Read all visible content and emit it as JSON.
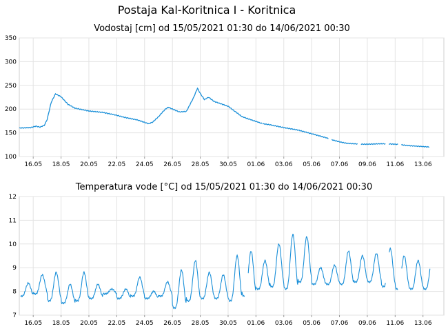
{
  "page_title": "Postaja Kal-Koritnica I - Koritnica",
  "colors": {
    "series": "#1a8fd8",
    "grid": "#e3e3e3",
    "axis": "#cfcfcf",
    "plot_bg": "#ffffff",
    "page_bg": "#f2f2f2"
  },
  "chart_data": [
    {
      "type": "line",
      "title": "Vodostaj [cm] od 15/05/2021 01:30 do 14/06/2021 00:30",
      "xlabel": "",
      "ylabel": "",
      "ylim": [
        100,
        350
      ],
      "yticks": [
        "100",
        "150",
        "200",
        "250",
        "300",
        "350"
      ],
      "xticks": [
        "16.05",
        "18.05",
        "20.05",
        "22.05",
        "24.05",
        "26.05",
        "28.05",
        "30.05",
        "01.06",
        "03.06",
        "05.06",
        "07.06",
        "09.06",
        "11.06",
        "13.06"
      ],
      "grid": true,
      "x_unit": "days since 15.05 00:00",
      "series": [
        {
          "x": [
            0.0,
            0.8,
            1.2,
            1.5,
            1.8,
            2.0,
            2.3,
            2.6,
            3.0,
            3.5,
            4.0,
            5.0,
            6.0,
            7.0,
            7.5,
            8.0,
            8.5,
            9.0,
            9.3,
            9.6,
            10.0,
            10.3,
            10.5,
            10.7,
            11.0,
            11.5,
            12.0,
            12.5,
            12.8,
            13.0,
            13.3,
            13.6,
            14.0,
            15.0,
            16.0,
            17.0,
            17.5
          ],
          "y": [
            160,
            161,
            164,
            162,
            166,
            178,
            215,
            232,
            226,
            210,
            202,
            196,
            193,
            187,
            183,
            180,
            177,
            172,
            169,
            173,
            184,
            194,
            200,
            204,
            200,
            194,
            195,
            223,
            244,
            233,
            220,
            225,
            216,
            206,
            184,
            174,
            169
          ]
        },
        {
          "x": [
            17.5,
            18.0,
            19.0,
            20.0,
            21.0,
            22.0,
            22.5,
            23.0,
            23.5,
            24.0,
            24.5,
            25.0,
            26.0,
            27.0,
            28.0,
            29.0,
            29.5
          ],
          "y": [
            169,
            167,
            161,
            156,
            148,
            140,
            135,
            131,
            128,
            127,
            126,
            126,
            127,
            126,
            123,
            121,
            120
          ],
          "gaps_at": [
            16.2,
            22.2,
            24.3,
            26.3,
            27.2
          ]
        }
      ]
    },
    {
      "type": "line",
      "title": "Temperatura vode [°C] od 15/05/2021 01:30 do 14/06/2021 00:30",
      "xlabel": "",
      "ylabel": "",
      "ylim": [
        7,
        12
      ],
      "yticks": [
        "7",
        "8",
        "9",
        "10",
        "11",
        "12"
      ],
      "xticks": [
        "16.05",
        "18.05",
        "20.05",
        "22.05",
        "24.05",
        "26.05",
        "28.05",
        "30.05",
        "01.06",
        "03.06",
        "05.06",
        "07.06",
        "09.06",
        "11.06",
        "13.06"
      ],
      "grid": true,
      "x_unit": "days since 15.05 00:00",
      "daily_pattern": {
        "day_index": [
          0,
          1,
          2,
          3,
          4,
          5,
          6,
          7,
          8,
          9,
          10,
          11,
          12,
          13,
          14,
          15,
          16,
          17,
          18,
          19,
          20,
          21,
          22,
          23,
          24,
          25,
          26,
          27,
          28,
          29
        ],
        "daily_max": [
          8.35,
          8.7,
          8.8,
          8.3,
          8.8,
          8.3,
          8.1,
          8.1,
          8.6,
          8.0,
          8.4,
          8.9,
          9.3,
          8.8,
          8.7,
          9.5,
          9.7,
          9.3,
          10.0,
          10.4,
          10.3,
          9.0,
          9.1,
          9.7,
          9.5,
          9.6,
          9.8,
          9.5,
          9.3,
          9.3
        ],
        "daily_min": [
          7.8,
          7.9,
          7.6,
          7.5,
          7.6,
          7.7,
          7.9,
          7.7,
          7.8,
          7.7,
          7.8,
          7.3,
          7.6,
          7.7,
          7.7,
          7.6,
          7.8,
          8.1,
          8.2,
          8.1,
          8.4,
          8.3,
          8.3,
          8.3,
          8.4,
          8.4,
          8.2,
          8.1,
          8.1,
          8.1
        ]
      },
      "gaps_at": [
        16.2,
        26.3,
        27.2
      ]
    }
  ]
}
